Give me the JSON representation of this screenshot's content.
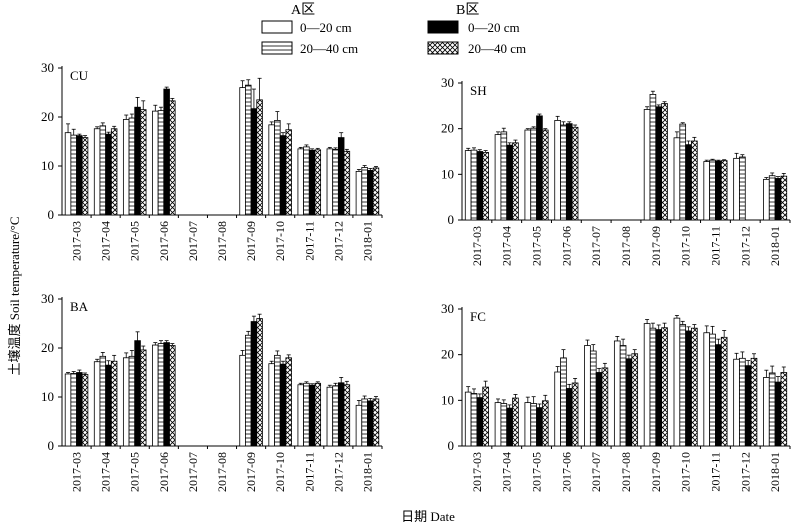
{
  "figure": {
    "ylabel": "土壤温度 Soil temperature/°C",
    "xlabel": "日期 Date"
  },
  "legend": {
    "groupA": "A区",
    "groupB": "B区",
    "entries": [
      {
        "key": "A_0_20",
        "label": "0—20 cm",
        "group": "A"
      },
      {
        "key": "A_20_40",
        "label": "20—40 cm",
        "group": "A"
      },
      {
        "key": "B_0_20",
        "label": "0—20 cm",
        "group": "B"
      },
      {
        "key": "B_20_40",
        "label": "20—40 cm",
        "group": "B"
      }
    ]
  },
  "colors": {
    "bar_fill_black": "#000000",
    "bar_fill_white": "#ffffff",
    "axis": "#000000"
  },
  "chart_data": [
    {
      "type": "bar",
      "title": "CU",
      "categories": [
        "2017-03",
        "2017-04",
        "2017-05",
        "2017-06",
        "2017-07",
        "2017-08",
        "2017-09",
        "2017-10",
        "2017-11",
        "2017-12",
        "2018-01"
      ],
      "ylim": [
        0,
        30
      ],
      "yticks": [
        0,
        10,
        20,
        30
      ],
      "series": [
        {
          "name": "A区 0—20 cm",
          "values": [
            16.8,
            17.6,
            19.5,
            21.2,
            null,
            null,
            26.0,
            18.4,
            13.5,
            13.5,
            8.9
          ],
          "errors": [
            1.8,
            0.4,
            0.9,
            1.2,
            null,
            null,
            1.4,
            0.6,
            0.3,
            0.3,
            0.4
          ]
        },
        {
          "name": "A区 20—40 cm",
          "values": [
            16.3,
            18.2,
            19.8,
            21.3,
            null,
            null,
            26.5,
            19.3,
            13.9,
            13.4,
            9.7
          ],
          "errors": [
            1.2,
            0.6,
            0.8,
            0.7,
            null,
            null,
            1.1,
            1.8,
            0.4,
            0.3,
            0.4
          ]
        },
        {
          "name": "B区 0—20 cm",
          "values": [
            16.2,
            16.5,
            22.0,
            25.7,
            null,
            null,
            21.7,
            16.2,
            13.2,
            15.8,
            9.1
          ],
          "errors": [
            0.3,
            0.4,
            2.0,
            0.4,
            null,
            null,
            4.0,
            0.6,
            0.3,
            1.0,
            0.4
          ]
        },
        {
          "name": "B区 20—40 cm",
          "values": [
            15.8,
            17.6,
            21.5,
            23.3,
            null,
            null,
            23.5,
            17.4,
            13.3,
            13.0,
            9.6
          ],
          "errors": [
            0.4,
            0.5,
            1.8,
            0.5,
            null,
            null,
            4.4,
            1.2,
            0.3,
            0.4,
            0.3
          ]
        }
      ]
    },
    {
      "type": "bar",
      "title": "SH",
      "categories": [
        "2017-03",
        "2017-04",
        "2017-05",
        "2017-06",
        "2017-07",
        "2017-08",
        "2017-09",
        "2017-10",
        "2017-11",
        "2017-12",
        "2018-01"
      ],
      "ylim": [
        0,
        30
      ],
      "yticks": [
        0,
        10,
        20,
        30
      ],
      "series": [
        {
          "name": "A区 0—20 cm",
          "values": [
            15.2,
            18.7,
            19.7,
            21.8,
            null,
            null,
            24.2,
            18.0,
            12.8,
            13.5,
            8.9
          ],
          "errors": [
            0.5,
            0.6,
            0.3,
            0.9,
            null,
            null,
            0.6,
            1.3,
            0.3,
            1.1,
            0.4
          ]
        },
        {
          "name": "A区 20—40 cm",
          "values": [
            15.3,
            19.3,
            20.1,
            20.8,
            null,
            null,
            27.5,
            21.0,
            13.1,
            13.8,
            9.7
          ],
          "errors": [
            0.5,
            0.8,
            0.3,
            0.7,
            null,
            null,
            0.7,
            0.3,
            0.2,
            0.5,
            0.6
          ]
        },
        {
          "name": "B区 0—20 cm",
          "values": [
            15.0,
            16.4,
            22.8,
            21.1,
            null,
            null,
            24.8,
            16.5,
            12.9,
            null,
            9.1
          ],
          "errors": [
            0.4,
            0.5,
            0.4,
            0.4,
            null,
            null,
            0.4,
            0.8,
            0.2,
            null,
            0.4
          ]
        },
        {
          "name": "B区 20—40 cm",
          "values": [
            14.8,
            16.9,
            19.7,
            20.3,
            null,
            null,
            25.5,
            17.3,
            13.0,
            null,
            9.6
          ],
          "errors": [
            0.4,
            0.6,
            0.3,
            0.5,
            null,
            null,
            0.4,
            0.8,
            0.2,
            null,
            0.6
          ]
        }
      ]
    },
    {
      "type": "bar",
      "title": "BA",
      "categories": [
        "2017-03",
        "2017-04",
        "2017-05",
        "2017-06",
        "2017-07",
        "2017-08",
        "2017-09",
        "2017-10",
        "2017-11",
        "2017-12",
        "2018-01"
      ],
      "ylim": [
        0,
        30
      ],
      "yticks": [
        0,
        10,
        20,
        30
      ],
      "series": [
        {
          "name": "A区 0—20 cm",
          "values": [
            14.7,
            17.2,
            18.0,
            20.6,
            null,
            null,
            18.5,
            16.8,
            12.5,
            12.0,
            8.3
          ],
          "errors": [
            0.3,
            0.5,
            1.0,
            0.5,
            null,
            null,
            1.0,
            0.5,
            0.3,
            0.4,
            1.0
          ]
        },
        {
          "name": "A区 20—40 cm",
          "values": [
            14.8,
            18.3,
            18.3,
            20.9,
            null,
            null,
            22.6,
            18.5,
            12.8,
            12.3,
            9.6
          ],
          "errors": [
            0.4,
            0.8,
            1.2,
            0.6,
            null,
            null,
            0.8,
            0.9,
            0.3,
            0.5,
            0.6
          ]
        },
        {
          "name": "B区 0—20 cm",
          "values": [
            15.0,
            16.5,
            21.5,
            21.1,
            null,
            null,
            25.4,
            16.7,
            12.4,
            12.9,
            9.2
          ],
          "errors": [
            0.5,
            0.9,
            1.8,
            0.4,
            null,
            null,
            1.1,
            0.6,
            0.3,
            1.1,
            0.5
          ]
        },
        {
          "name": "B区 20—40 cm",
          "values": [
            14.6,
            17.3,
            19.6,
            20.5,
            null,
            null,
            26.0,
            18.0,
            12.8,
            12.5,
            9.6
          ],
          "errors": [
            0.3,
            1.2,
            0.8,
            0.4,
            null,
            null,
            0.9,
            0.6,
            0.3,
            0.7,
            0.5
          ]
        }
      ]
    },
    {
      "type": "bar",
      "title": "FC",
      "categories": [
        "2017-03",
        "2017-04",
        "2017-05",
        "2017-06",
        "2017-07",
        "2017-08",
        "2017-09",
        "2017-10",
        "2017-11",
        "2017-12",
        "2018-01"
      ],
      "ylim": [
        0,
        30
      ],
      "yticks": [
        0,
        10,
        20,
        30
      ],
      "series": [
        {
          "name": "A区 0—20 cm",
          "values": [
            11.8,
            9.5,
            9.5,
            16.2,
            22.0,
            23.0,
            26.8,
            28.0,
            24.8,
            19.0,
            15.0
          ],
          "errors": [
            1.2,
            0.8,
            1.2,
            1.2,
            1.2,
            1.0,
            0.9,
            0.6,
            1.5,
            1.3,
            1.6
          ]
        },
        {
          "name": "A区 20—40 cm",
          "values": [
            11.5,
            9.3,
            9.3,
            19.3,
            20.8,
            22.0,
            25.8,
            26.6,
            24.5,
            19.2,
            16.0
          ],
          "errors": [
            1.0,
            0.8,
            1.5,
            1.8,
            1.4,
            1.4,
            1.1,
            0.7,
            1.7,
            1.4,
            1.5
          ]
        },
        {
          "name": "B区 0—20 cm",
          "values": [
            10.6,
            8.3,
            8.4,
            12.6,
            16.1,
            19.1,
            25.5,
            25.2,
            22.2,
            17.6,
            14.0
          ],
          "errors": [
            0.8,
            0.7,
            0.8,
            0.9,
            0.9,
            0.8,
            1.0,
            0.9,
            1.2,
            1.1,
            1.2
          ]
        },
        {
          "name": "B区 20—40 cm",
          "values": [
            12.9,
            10.5,
            9.9,
            13.8,
            17.1,
            20.2,
            25.9,
            25.8,
            23.8,
            19.2,
            16.1
          ],
          "errors": [
            1.3,
            0.8,
            1.2,
            1.0,
            1.0,
            0.9,
            1.0,
            0.8,
            1.5,
            1.0,
            1.2
          ]
        }
      ]
    }
  ]
}
